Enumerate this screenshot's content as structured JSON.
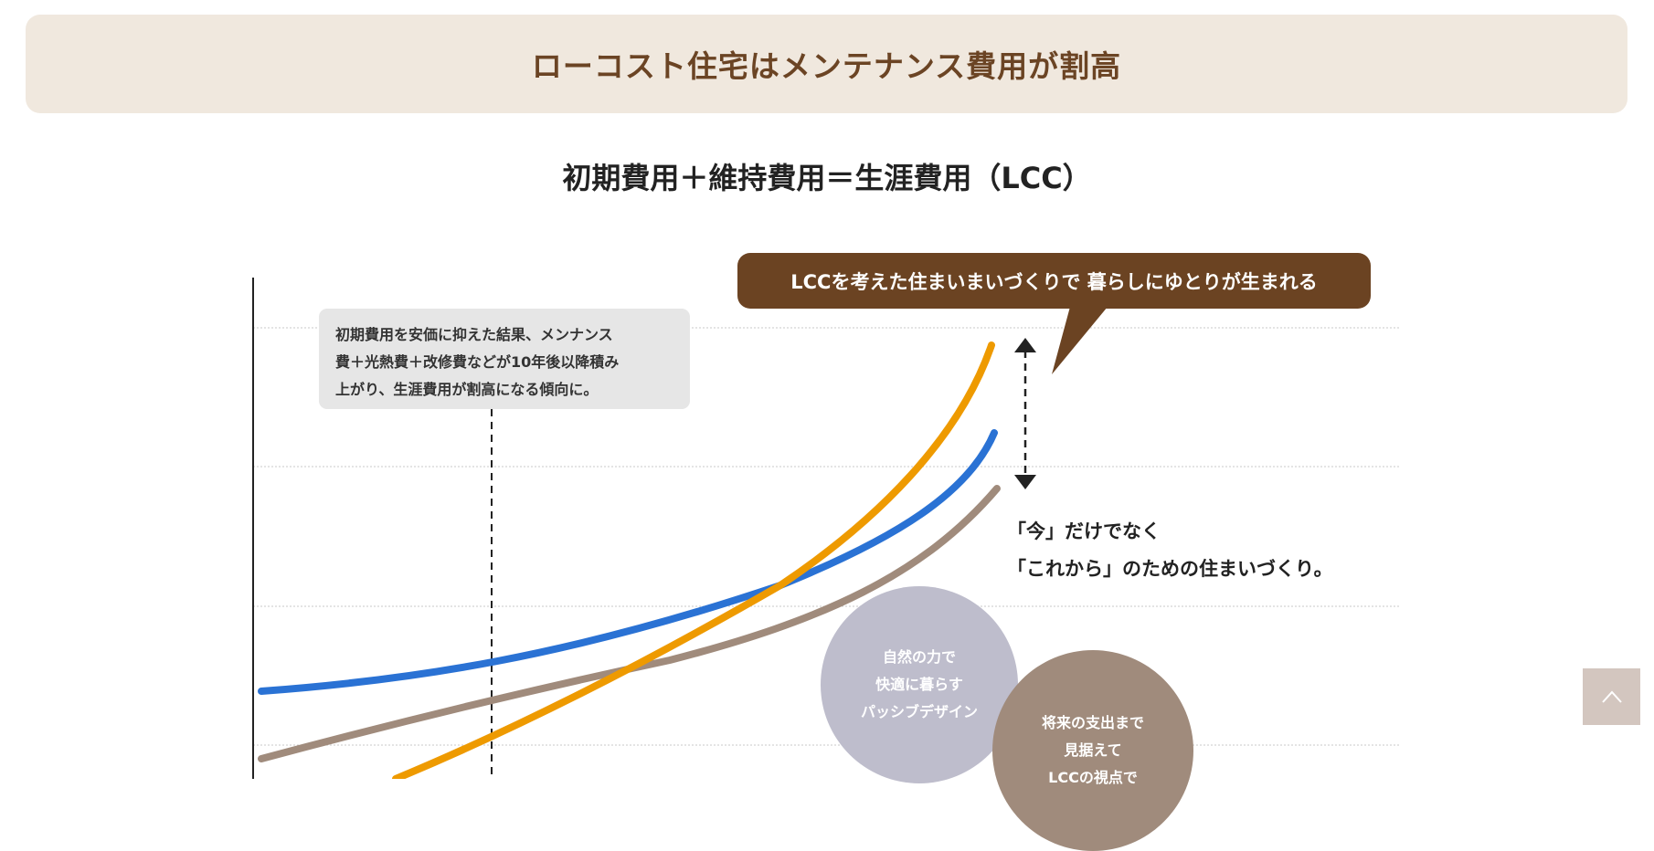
{
  "header": {
    "title": "ローコスト住宅はメンテナンス費用が割高"
  },
  "diagram": {
    "subtitle": "初期費用＋維持費用＝生涯費用（LCC）",
    "note_lines": [
      "初期費用を安価に抑えた結果、メンナンス",
      "費＋光熱費＋改修費などが10年後以降積み",
      "上がり、生涯費用が割高になる傾向に。"
    ],
    "callout": "LCCを考えた住まいまいづくりで 暮らしにゆとりが生まれる",
    "message_lines": [
      "「今」だけでなく",
      "「これから」のための住まいづくり。"
    ],
    "circle1_lines": [
      "自然の力で",
      "快適に暮らす",
      "パッシブデザイン"
    ],
    "circle2_lines": [
      "将来の支出まで",
      "見据えて",
      "LCCの視点で"
    ],
    "colors": {
      "orange": "#ee9a00",
      "blue": "#2a72d4",
      "taupe": "#a08b7c",
      "brown": "#6b4322"
    }
  },
  "scroll_top": {
    "icon": "chevron-up-icon"
  }
}
